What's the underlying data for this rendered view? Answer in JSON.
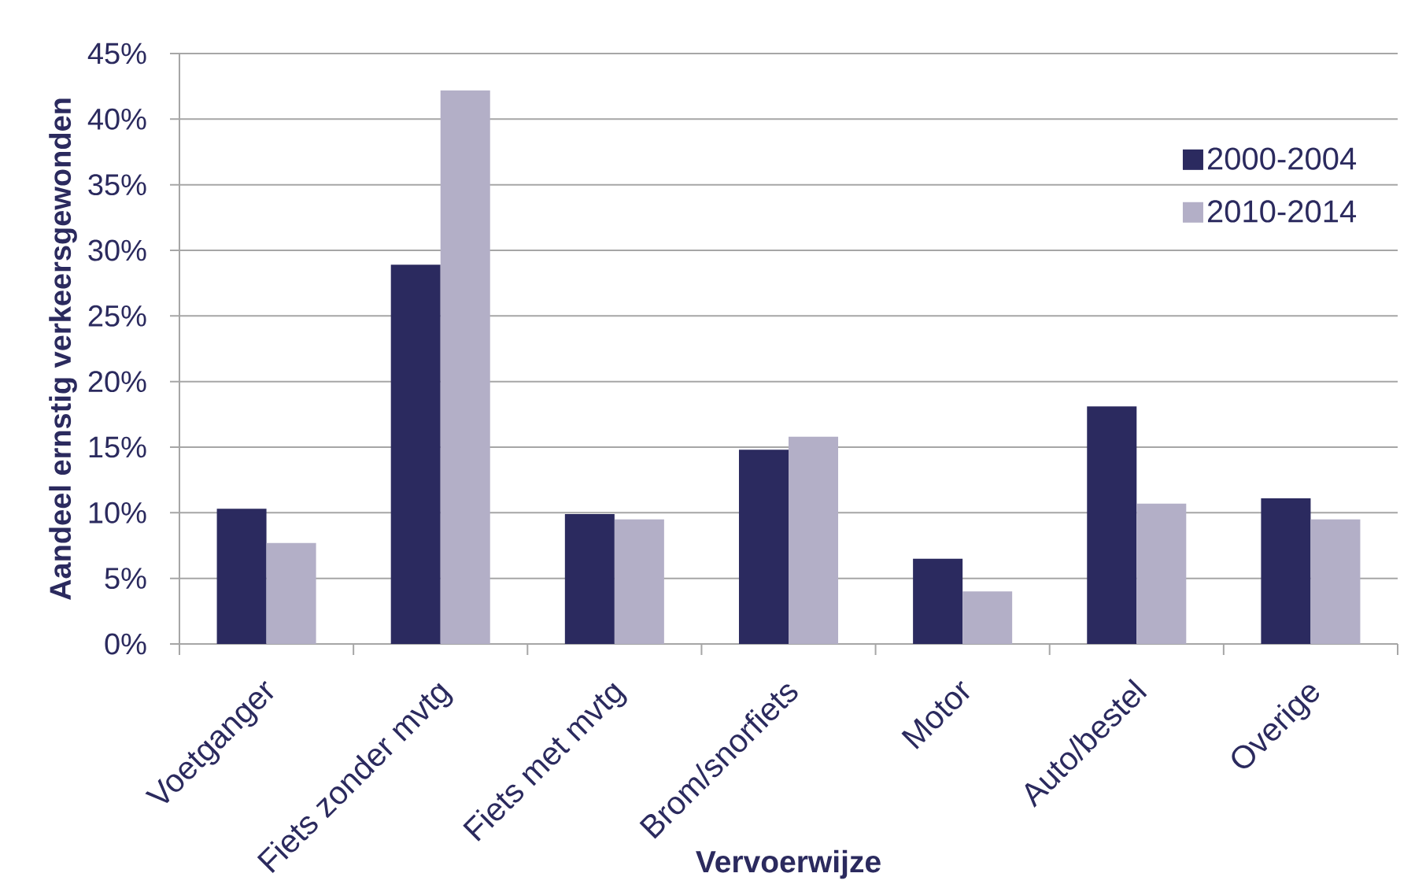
{
  "chart_data": {
    "type": "bar",
    "xlabel": "Vervoerwijze",
    "ylabel": "Aandeel ernstig verkeersgewonden",
    "categories": [
      "Voetganger",
      "Fiets zonder mvtg",
      "Fiets met mvtg",
      "Brom/snorfiets",
      "Motor",
      "Auto/bestel",
      "Overige"
    ],
    "series": [
      {
        "name": "2000-2004",
        "color": "#2b2a5f",
        "values": [
          10.3,
          28.9,
          9.9,
          14.8,
          6.5,
          18.1,
          11.1
        ]
      },
      {
        "name": "2010-2014",
        "color": "#b3afc7",
        "values": [
          7.7,
          42.2,
          9.5,
          15.8,
          4.0,
          10.7,
          9.5
        ]
      }
    ],
    "ylim": [
      0,
      45
    ],
    "yticks": [
      {
        "value": 0,
        "label": "0%"
      },
      {
        "value": 5,
        "label": "5%"
      },
      {
        "value": 10,
        "label": "10%"
      },
      {
        "value": 15,
        "label": "15%"
      },
      {
        "value": 20,
        "label": "20%"
      },
      {
        "value": 25,
        "label": "25%"
      },
      {
        "value": 30,
        "label": "30%"
      },
      {
        "value": 35,
        "label": "35%"
      },
      {
        "value": 40,
        "label": "40%"
      },
      {
        "value": 45,
        "label": "45%"
      }
    ],
    "grid": "y",
    "legend": "top right"
  }
}
